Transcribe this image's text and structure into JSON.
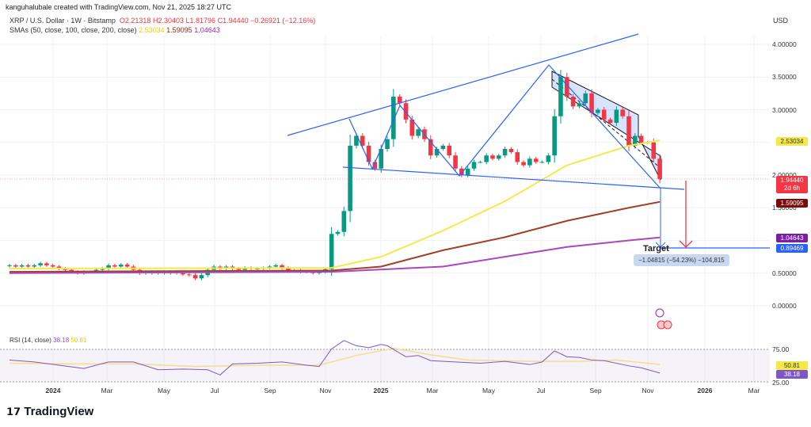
{
  "header": {
    "credit": "kanguhalubale created with TradingView.com, Nov 21, 2025 18:27 UTC",
    "symbol": "XRP / U.S. Dollar · 1W · Bitstamp",
    "open": "O2.21318",
    "high": "H2.30403",
    "low": "L1.81796",
    "close": "C1.94440",
    "change": "−0.26921 (−12.16%)",
    "sma_label": "SMAs (50, close, 100, close, 200, close)",
    "sma50": "2.53034",
    "sma100": "1.59095",
    "sma200": "1.04643"
  },
  "currency": "USD",
  "price_labels": [
    "4.00000",
    "3.50000",
    "3.00000",
    "2.00000",
    "1.50000",
    "0.50000",
    "0.00000"
  ],
  "tags": {
    "sma50": "2.53034",
    "price": "1.94440",
    "countdown": "2d 6h",
    "sma100": "1.59095",
    "sma200": "1.04643",
    "target": "0.89469"
  },
  "annotation": {
    "target_label": "Target",
    "measure": "−1.04815 (−54.23%) −104,815"
  },
  "rsi": {
    "label": "RSI (14, close)",
    "value": "38.18",
    "ma": "50.81",
    "levels": [
      "75.00",
      "25.00"
    ]
  },
  "x_labels": [
    {
      "t": "2024",
      "b": true
    },
    {
      "t": "Mar"
    },
    {
      "t": "May"
    },
    {
      "t": "Jul"
    },
    {
      "t": "Sep"
    },
    {
      "t": "Nov"
    },
    {
      "t": "2025",
      "b": true
    },
    {
      "t": "Mar"
    },
    {
      "t": "May"
    },
    {
      "t": "Jul"
    },
    {
      "t": "Sep"
    },
    {
      "t": "Nov"
    },
    {
      "t": "2026",
      "b": true
    },
    {
      "t": "Mar"
    }
  ],
  "logo": "TradingView",
  "colors": {
    "up": "#089981",
    "down": "#f23645",
    "sma50": "#f5e94a",
    "sma100": "#8b2b1a",
    "sma200": "#9c27b0",
    "rsi": "#7e57c2",
    "drawing": "#2962ff"
  },
  "chart_data": {
    "type": "candlestick",
    "interval": "1W",
    "first_week": "2023-11-13",
    "ylim": [
      -0.1,
      4.3
    ],
    "closes": [
      0.62,
      0.6,
      0.62,
      0.6,
      0.62,
      0.65,
      0.62,
      0.6,
      0.57,
      0.55,
      0.52,
      0.5,
      0.52,
      0.52,
      0.55,
      0.57,
      0.62,
      0.6,
      0.63,
      0.6,
      0.55,
      0.5,
      0.52,
      0.5,
      0.52,
      0.5,
      0.52,
      0.5,
      0.48,
      0.47,
      0.42,
      0.47,
      0.55,
      0.6,
      0.57,
      0.6,
      0.57,
      0.55,
      0.58,
      0.57,
      0.57,
      0.58,
      0.6,
      0.62,
      0.58,
      0.53,
      0.54,
      0.52,
      0.52,
      0.5,
      0.52,
      0.56,
      1.1,
      1.13,
      1.45,
      2.45,
      2.6,
      2.45,
      2.2,
      2.1,
      2.4,
      2.55,
      3.2,
      3.1,
      2.85,
      2.6,
      2.7,
      2.55,
      2.3,
      2.4,
      2.45,
      2.3,
      2.1,
      2.0,
      2.1,
      2.2,
      2.2,
      2.3,
      2.25,
      2.3,
      2.4,
      2.35,
      2.2,
      2.15,
      2.25,
      2.2,
      2.2,
      2.3,
      2.9,
      3.5,
      3.2,
      3.05,
      3.1,
      3.25,
      2.95,
      3.0,
      2.85,
      2.8,
      3.0,
      2.9,
      2.45,
      2.6,
      2.5,
      2.5,
      2.25,
      1.94
    ],
    "sma50": [
      [
        0,
        0.57
      ],
      [
        52,
        0.58
      ],
      [
        60,
        0.75
      ],
      [
        70,
        1.15
      ],
      [
        80,
        1.6
      ],
      [
        90,
        2.15
      ],
      [
        100,
        2.45
      ],
      [
        105,
        2.53
      ]
    ],
    "sma100": [
      [
        0,
        0.52
      ],
      [
        52,
        0.54
      ],
      [
        60,
        0.6
      ],
      [
        70,
        0.85
      ],
      [
        80,
        1.05
      ],
      [
        90,
        1.3
      ],
      [
        100,
        1.5
      ],
      [
        105,
        1.59
      ]
    ],
    "sma200": [
      [
        0,
        0.5
      ],
      [
        52,
        0.52
      ],
      [
        70,
        0.6
      ],
      [
        80,
        0.75
      ],
      [
        90,
        0.9
      ],
      [
        100,
        1.0
      ],
      [
        105,
        1.046
      ]
    ],
    "rsi": [
      [
        0,
        58
      ],
      [
        4,
        55
      ],
      [
        8,
        50
      ],
      [
        12,
        45
      ],
      [
        16,
        55
      ],
      [
        20,
        55
      ],
      [
        24,
        43
      ],
      [
        28,
        44
      ],
      [
        32,
        43
      ],
      [
        34,
        35
      ],
      [
        36,
        52
      ],
      [
        40,
        53
      ],
      [
        44,
        55
      ],
      [
        48,
        50
      ],
      [
        50,
        48
      ],
      [
        52,
        75
      ],
      [
        54,
        88
      ],
      [
        56,
        80
      ],
      [
        58,
        77
      ],
      [
        60,
        82
      ],
      [
        61,
        80
      ],
      [
        64,
        63
      ],
      [
        66,
        65
      ],
      [
        68,
        57
      ],
      [
        72,
        55
      ],
      [
        76,
        53
      ],
      [
        80,
        56
      ],
      [
        84,
        51
      ],
      [
        86,
        55
      ],
      [
        88,
        72
      ],
      [
        90,
        63
      ],
      [
        92,
        62
      ],
      [
        94,
        58
      ],
      [
        96,
        57
      ],
      [
        100,
        49
      ],
      [
        102,
        46
      ],
      [
        105,
        38
      ]
    ],
    "rsi_ma": [
      [
        0,
        53
      ],
      [
        10,
        52
      ],
      [
        20,
        52
      ],
      [
        30,
        48
      ],
      [
        40,
        50
      ],
      [
        50,
        50
      ],
      [
        56,
        65
      ],
      [
        62,
        76
      ],
      [
        68,
        66
      ],
      [
        74,
        58
      ],
      [
        84,
        56
      ],
      [
        92,
        56
      ],
      [
        98,
        58
      ],
      [
        105,
        51
      ]
    ]
  }
}
